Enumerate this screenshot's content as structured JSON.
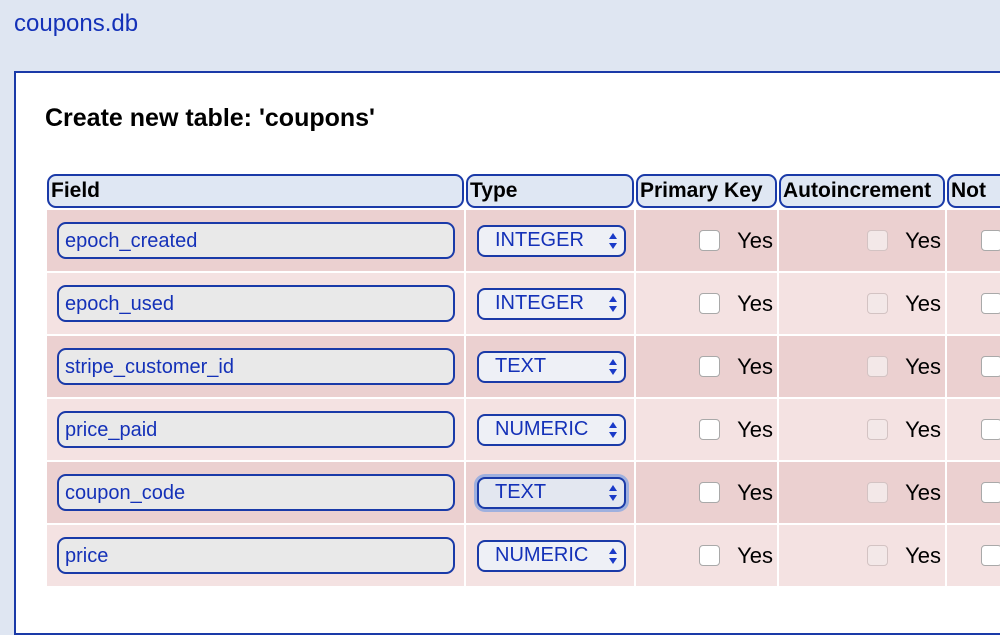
{
  "db_name": "coupons.db",
  "heading": "Create new table: 'coupons'",
  "columns": {
    "field": "Field",
    "type": "Type",
    "primary_key": "Primary Key",
    "autoincrement": "Autoincrement",
    "not_null": "Not"
  },
  "yes_label": "Yes",
  "rows": [
    {
      "field": "epoch_created",
      "type": "INTEGER"
    },
    {
      "field": "epoch_used",
      "type": "INTEGER"
    },
    {
      "field": "stripe_customer_id",
      "type": "TEXT"
    },
    {
      "field": "price_paid",
      "type": "NUMERIC"
    },
    {
      "field": "coupon_code",
      "type": "TEXT",
      "focused": true
    },
    {
      "field": "price",
      "type": "NUMERIC"
    }
  ],
  "colors": {
    "accent": "#1a3aa8",
    "background": "#dfe6f2",
    "row_odd": "#ebd0d0",
    "row_even": "#f4e2e2"
  }
}
